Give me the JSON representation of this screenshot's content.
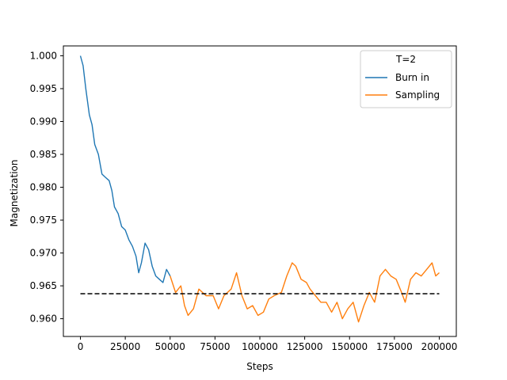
{
  "chart_data": {
    "type": "line",
    "title": "",
    "xlabel": "Steps",
    "ylabel": "Magnetization",
    "xlim": [
      -9500,
      209500
    ],
    "ylim": [
      0.9573,
      1.0015
    ],
    "xticks": [
      0,
      25000,
      50000,
      75000,
      100000,
      125000,
      150000,
      175000,
      200000
    ],
    "yticks": [
      0.96,
      0.965,
      0.97,
      0.975,
      0.98,
      0.985,
      0.99,
      0.995,
      1.0
    ],
    "xtick_labels": [
      "0",
      "25000",
      "50000",
      "75000",
      "100000",
      "125000",
      "150000",
      "175000",
      "200000"
    ],
    "ytick_labels": [
      "0.960",
      "0.965",
      "0.970",
      "0.975",
      "0.980",
      "0.985",
      "0.990",
      "0.995",
      "1.000"
    ],
    "grid": false,
    "legend": {
      "title": "T=2",
      "placement": "top-right"
    },
    "series": [
      {
        "name": "Burn in",
        "color": "#1f77b4",
        "style": "solid",
        "points": [
          [
            0,
            1.0
          ],
          [
            1500,
            0.9985
          ],
          [
            3000,
            0.995
          ],
          [
            5000,
            0.991
          ],
          [
            6500,
            0.9895
          ],
          [
            8000,
            0.9865
          ],
          [
            10000,
            0.985
          ],
          [
            12000,
            0.982
          ],
          [
            14000,
            0.9815
          ],
          [
            16000,
            0.981
          ],
          [
            17500,
            0.9795
          ],
          [
            19000,
            0.977
          ],
          [
            21000,
            0.976
          ],
          [
            23000,
            0.974
          ],
          [
            25000,
            0.9735
          ],
          [
            27000,
            0.972
          ],
          [
            29000,
            0.971
          ],
          [
            31000,
            0.9695
          ],
          [
            32500,
            0.967
          ],
          [
            34000,
            0.9685
          ],
          [
            36000,
            0.9715
          ],
          [
            38000,
            0.9705
          ],
          [
            40000,
            0.968
          ],
          [
            42000,
            0.9665
          ],
          [
            44000,
            0.966
          ],
          [
            46000,
            0.9655
          ],
          [
            48000,
            0.9675
          ],
          [
            50000,
            0.9665
          ]
        ]
      },
      {
        "name": "Sampling",
        "color": "#ff7f0e",
        "style": "solid",
        "points": [
          [
            50000,
            0.9665
          ],
          [
            53000,
            0.964
          ],
          [
            56000,
            0.965
          ],
          [
            58000,
            0.962
          ],
          [
            60000,
            0.9605
          ],
          [
            63000,
            0.9615
          ],
          [
            66000,
            0.9645
          ],
          [
            70000,
            0.9635
          ],
          [
            74000,
            0.9635
          ],
          [
            77000,
            0.9615
          ],
          [
            80000,
            0.9635
          ],
          [
            84000,
            0.9645
          ],
          [
            87000,
            0.967
          ],
          [
            90000,
            0.9635
          ],
          [
            93000,
            0.9615
          ],
          [
            96000,
            0.962
          ],
          [
            99000,
            0.9605
          ],
          [
            102000,
            0.961
          ],
          [
            105000,
            0.963
          ],
          [
            108000,
            0.9635
          ],
          [
            112000,
            0.964
          ],
          [
            115000,
            0.9665
          ],
          [
            118000,
            0.9685
          ],
          [
            120000,
            0.968
          ],
          [
            123000,
            0.966
          ],
          [
            126000,
            0.9655
          ],
          [
            128000,
            0.9645
          ],
          [
            131000,
            0.9635
          ],
          [
            134000,
            0.9625
          ],
          [
            137000,
            0.9625
          ],
          [
            140000,
            0.961
          ],
          [
            143000,
            0.9625
          ],
          [
            146000,
            0.96
          ],
          [
            149000,
            0.9615
          ],
          [
            152000,
            0.9625
          ],
          [
            155000,
            0.9595
          ],
          [
            158000,
            0.962
          ],
          [
            161000,
            0.964
          ],
          [
            164000,
            0.9625
          ],
          [
            167000,
            0.9665
          ],
          [
            170000,
            0.9675
          ],
          [
            173000,
            0.9665
          ],
          [
            176000,
            0.966
          ],
          [
            179000,
            0.964
          ],
          [
            181000,
            0.9625
          ],
          [
            184000,
            0.966
          ],
          [
            187000,
            0.967
          ],
          [
            190000,
            0.9665
          ],
          [
            193000,
            0.9675
          ],
          [
            196000,
            0.9685
          ],
          [
            198000,
            0.9665
          ],
          [
            200000,
            0.967
          ]
        ]
      },
      {
        "name": "",
        "color": "#000000",
        "style": "dashed",
        "points": [
          [
            0,
            0.9638
          ],
          [
            200000,
            0.9638
          ]
        ]
      }
    ]
  }
}
